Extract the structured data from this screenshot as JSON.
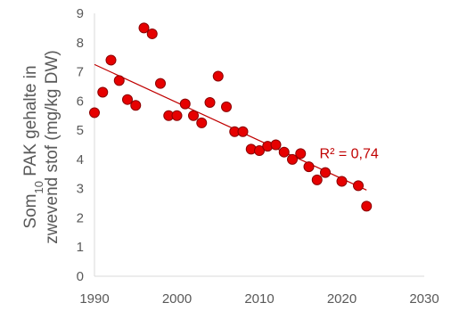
{
  "chart_data": {
    "type": "scatter",
    "title": "",
    "ylabel": {
      "line1_prefix": "Som",
      "line1_sub": "10",
      "line1_suffix": " PAK gehalte in",
      "line2": "zwevend stof (mg/kg DW)"
    },
    "xlabel": "",
    "xlim": [
      1990,
      2030
    ],
    "ylim": [
      0,
      9
    ],
    "x_ticks": [
      1990,
      2000,
      2010,
      2020,
      2030
    ],
    "y_ticks": [
      0,
      1,
      2,
      3,
      4,
      5,
      6,
      7,
      8,
      9
    ],
    "grid": false,
    "legend": "none",
    "colors": {
      "marker_fill": "#e60000",
      "marker_stroke": "#8b0000",
      "trendline": "#c00000",
      "axis": "#d9d9d9",
      "text": "#595959"
    },
    "series": [
      {
        "points": [
          [
            1990,
            5.6
          ],
          [
            1991,
            6.3
          ],
          [
            1992,
            7.4
          ],
          [
            1993,
            6.7
          ],
          [
            1994,
            6.05
          ],
          [
            1995,
            5.85
          ],
          [
            1996,
            8.5
          ],
          [
            1997,
            8.3
          ],
          [
            1998,
            6.6
          ],
          [
            1999,
            5.5
          ],
          [
            2000,
            5.5
          ],
          [
            2001,
            5.9
          ],
          [
            2002,
            5.5
          ],
          [
            2003,
            5.25
          ],
          [
            2004,
            5.95
          ],
          [
            2005,
            6.85
          ],
          [
            2006,
            5.8
          ],
          [
            2007,
            4.95
          ],
          [
            2008,
            4.95
          ],
          [
            2009,
            4.35
          ],
          [
            2010,
            4.3
          ],
          [
            2011,
            4.45
          ],
          [
            2012,
            4.5
          ],
          [
            2013,
            4.25
          ],
          [
            2014,
            4.0
          ],
          [
            2015,
            4.2
          ],
          [
            2016,
            3.75
          ],
          [
            2017,
            3.3
          ],
          [
            2018,
            3.55
          ],
          [
            2020,
            3.25
          ],
          [
            2022,
            3.1
          ],
          [
            2023,
            2.4
          ]
        ]
      }
    ],
    "trendline": {
      "type": "linear",
      "x_range": [
        1990,
        2023
      ],
      "y_range": [
        7.25,
        2.95
      ],
      "label": "R² = 0,74"
    }
  }
}
